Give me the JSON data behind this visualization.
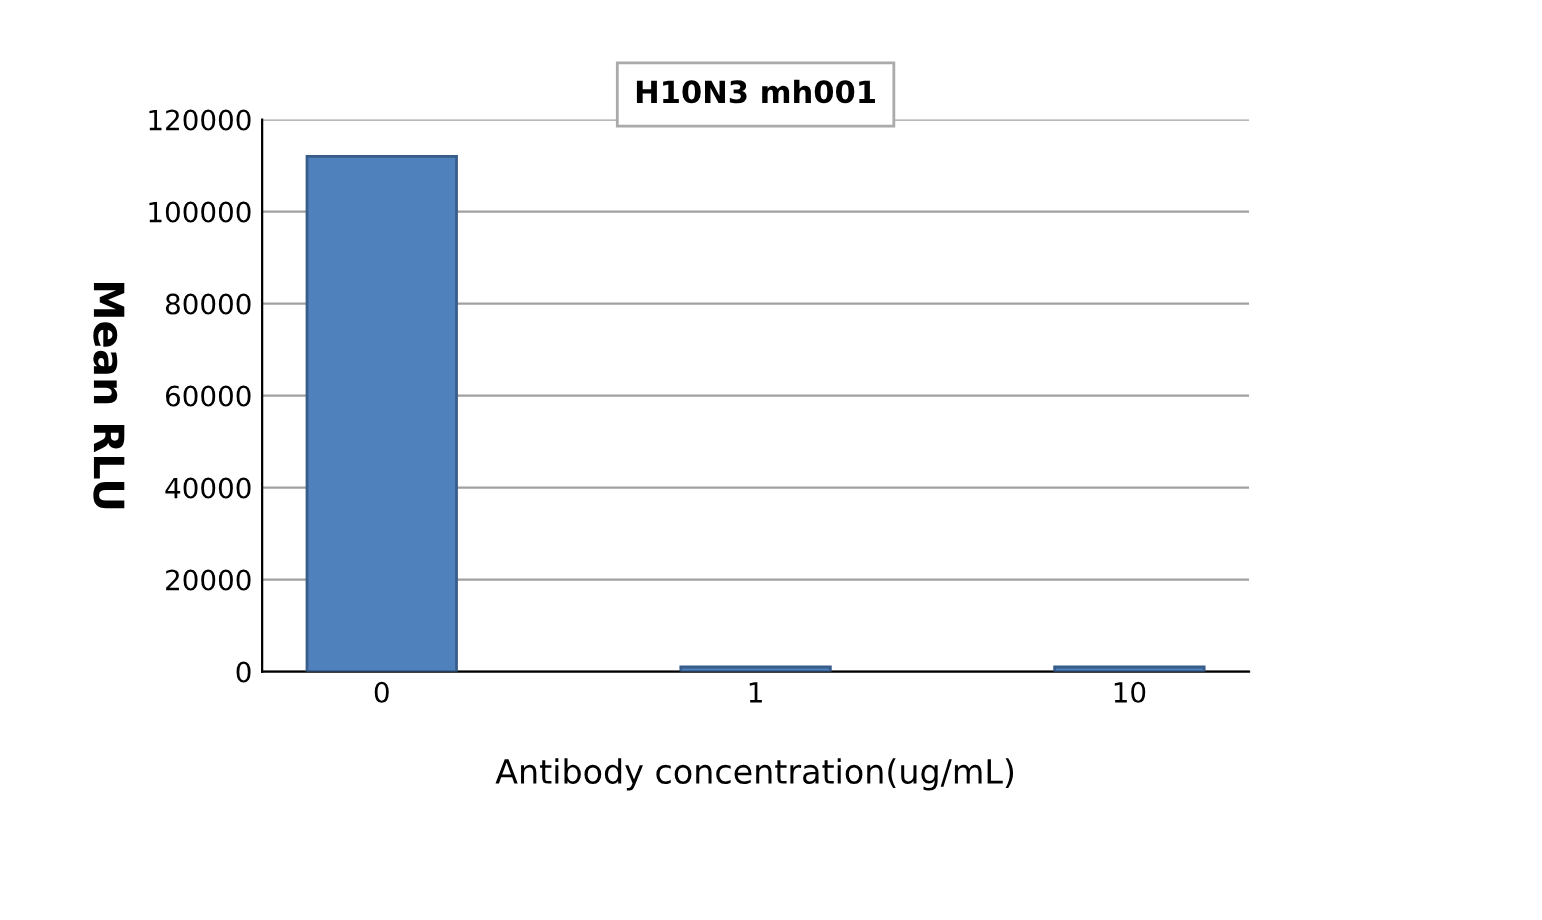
{
  "chart_data": {
    "type": "bar",
    "title": "H10N3 mh001",
    "xlabel": "Antibody concentration(ug/mL)",
    "ylabel": "Mean RLU",
    "categories": [
      "0",
      "1",
      "10"
    ],
    "values": [
      112000,
      1000,
      1000
    ],
    "color": "#4f81bd",
    "ylim": [
      0,
      120000
    ],
    "yticks": [
      0,
      20000,
      40000,
      60000,
      80000,
      100000,
      120000
    ],
    "grid": "y"
  }
}
